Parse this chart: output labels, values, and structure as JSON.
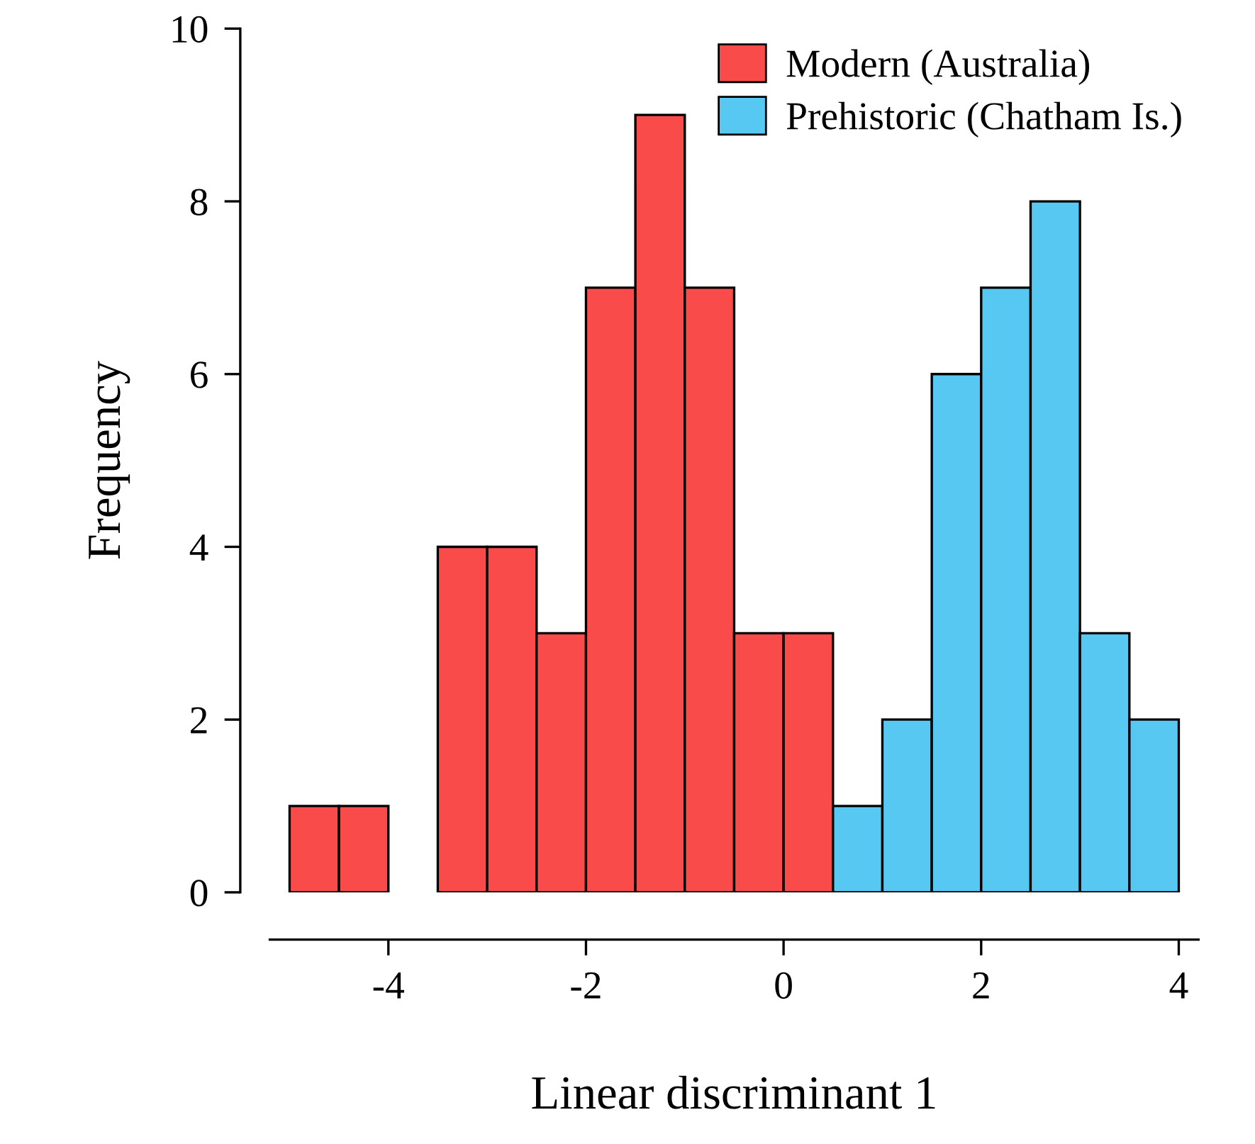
{
  "chart_data": {
    "type": "histogram",
    "xlabel": "Linear discriminant 1",
    "ylabel": "Frequency",
    "bins": [
      -5,
      -4.5,
      -4,
      -3.5,
      -3,
      -2.5,
      -2,
      -1.5,
      -1,
      -0.5,
      0,
      0.5,
      1,
      1.5,
      2,
      2.5,
      3,
      3.5,
      4
    ],
    "series": [
      {
        "name": "Modern (Australia)",
        "color": "#fa4b4b",
        "values": [
          1,
          1,
          0,
          4,
          4,
          3,
          7,
          9,
          7,
          3,
          3,
          null,
          null,
          null,
          null,
          null,
          null,
          null
        ]
      },
      {
        "name": "Prehistoric (Chatham Is.)",
        "color": "#56c8f2",
        "values": [
          null,
          null,
          null,
          null,
          null,
          null,
          null,
          null,
          null,
          null,
          null,
          1,
          2,
          6,
          7,
          8,
          3,
          2
        ]
      }
    ],
    "xlim": [
      -5.2,
      4.2
    ],
    "ylim": [
      0,
      10
    ],
    "xticks": [
      -4,
      -2,
      0,
      2,
      4
    ],
    "yticks": [
      0,
      2,
      4,
      6,
      8,
      10
    ],
    "grid": false,
    "legend": "top right"
  }
}
